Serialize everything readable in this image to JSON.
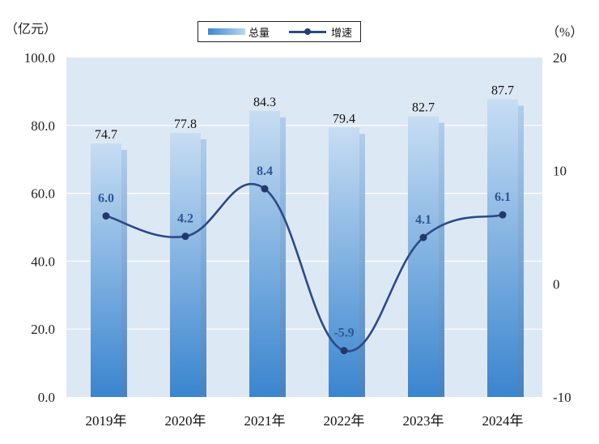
{
  "units": {
    "left": "（亿元）",
    "right": "（%）"
  },
  "legend": {
    "bar_label": "总量",
    "line_label": "增速"
  },
  "chart_data": {
    "type": "bar",
    "categories": [
      "2019年",
      "2020年",
      "2021年",
      "2022年",
      "2023年",
      "2024年"
    ],
    "series": [
      {
        "name": "总量",
        "type": "bar",
        "axis": "left",
        "values": [
          74.7,
          77.8,
          84.3,
          79.4,
          82.7,
          87.7
        ]
      },
      {
        "name": "增速",
        "type": "line",
        "axis": "right",
        "values": [
          6.0,
          4.2,
          8.4,
          -5.9,
          4.1,
          6.1
        ]
      }
    ],
    "bar_labels": [
      "74.7",
      "77.8",
      "84.3",
      "79.4",
      "82.7",
      "87.7"
    ],
    "line_labels": [
      "6.0",
      "4.2",
      "8.4",
      "-5.9",
      "4.1",
      "6.1"
    ],
    "y_left": {
      "ylim": [
        0,
        100
      ],
      "ticks": [
        "0.0",
        "20.0",
        "40.0",
        "60.0",
        "80.0",
        "100.0"
      ]
    },
    "y_right": {
      "ylim": [
        -10,
        20
      ],
      "ticks": [
        "-10",
        "0",
        "10",
        "20"
      ]
    },
    "grid": true,
    "legend_position": "top-center",
    "colors": {
      "bar_dark": "#3a85cf",
      "bar_light": "#c7ddf3",
      "line": "#2c4a86",
      "plot_bg": "#dde8f5",
      "label_line": "#2f5597"
    }
  }
}
